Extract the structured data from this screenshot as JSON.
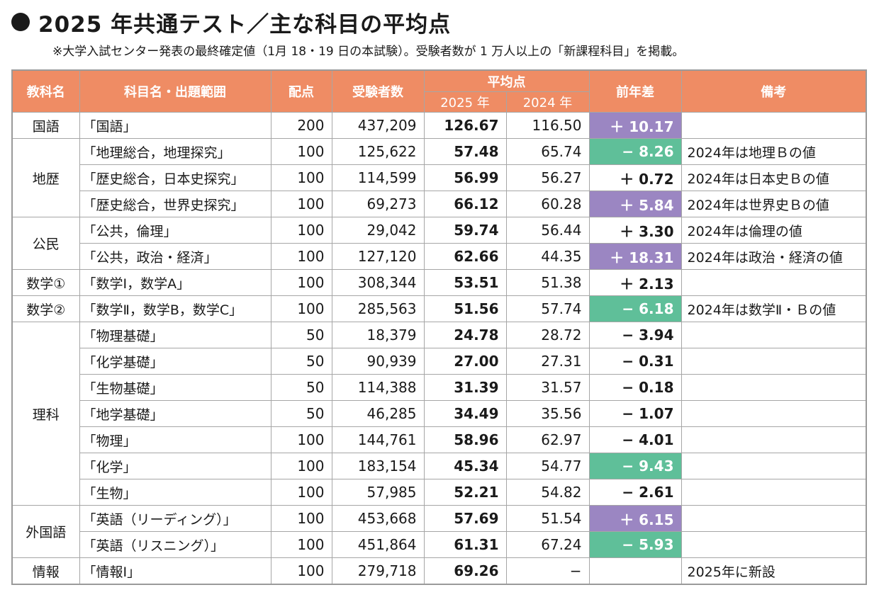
{
  "title": "2025 年共通テスト／主な科目の平均点",
  "note": "※大学入試センター発表の最終確定値（1月 18・19 日の本試験）。受験者数が 1 万人以上の「新課程科目」を掲載。",
  "colors": {
    "header": "#ef8c64",
    "increase": "#9b86c2",
    "decrease": "#5fbf99"
  },
  "headers": {
    "category": "教科名",
    "subject": "科目名・出題範囲",
    "points": "配点",
    "examinees": "受験者数",
    "average": "平均点",
    "y2025": "2025 年",
    "y2024": "2024 年",
    "diff": "前年差",
    "remarks": "備考"
  },
  "rows": [
    {
      "category": "国語",
      "subject": "「国語」",
      "points": "200",
      "examinees": "437,209",
      "avg2025": "126.67",
      "avg2024": "116.50",
      "diff": "＋ 10.17",
      "highlight": "purple",
      "remark": ""
    },
    {
      "category": "地歴",
      "subject": "「地理総合，地理探究」",
      "points": "100",
      "examinees": "125,622",
      "avg2025": "57.48",
      "avg2024": "65.74",
      "diff": "− 8.26",
      "highlight": "green",
      "remark": "2024年は地理Ｂの値"
    },
    {
      "category": "",
      "subject": "「歴史総合，日本史探究」",
      "points": "100",
      "examinees": "114,599",
      "avg2025": "56.99",
      "avg2024": "56.27",
      "diff": "＋ 0.72",
      "highlight": "",
      "remark": "2024年は日本史Ｂの値"
    },
    {
      "category": "",
      "subject": "「歴史総合，世界史探究」",
      "points": "100",
      "examinees": "69,273",
      "avg2025": "66.12",
      "avg2024": "60.28",
      "diff": "＋ 5.84",
      "highlight": "purple",
      "remark": "2024年は世界史Ｂの値"
    },
    {
      "category": "公民",
      "subject": "「公共，倫理」",
      "points": "100",
      "examinees": "29,042",
      "avg2025": "59.74",
      "avg2024": "56.44",
      "diff": "＋ 3.30",
      "highlight": "",
      "remark": "2024年は倫理の値"
    },
    {
      "category": "",
      "subject": "「公共，政治・経済」",
      "points": "100",
      "examinees": "127,120",
      "avg2025": "62.66",
      "avg2024": "44.35",
      "diff": "＋ 18.31",
      "highlight": "purple",
      "remark": "2024年は政治・経済の値"
    },
    {
      "category": "数学①",
      "subject": "「数学Ⅰ，数学A」",
      "points": "100",
      "examinees": "308,344",
      "avg2025": "53.51",
      "avg2024": "51.38",
      "diff": "＋ 2.13",
      "highlight": "",
      "remark": ""
    },
    {
      "category": "数学②",
      "subject": "「数学Ⅱ，数学B，数学C」",
      "points": "100",
      "examinees": "285,563",
      "avg2025": "51.56",
      "avg2024": "57.74",
      "diff": "− 6.18",
      "highlight": "green",
      "remark": "2024年は数学Ⅱ・Ｂの値"
    },
    {
      "category": "理科",
      "subject": "「物理基礎」",
      "points": "50",
      "examinees": "18,379",
      "avg2025": "24.78",
      "avg2024": "28.72",
      "diff": "− 3.94",
      "highlight": "",
      "remark": ""
    },
    {
      "category": "",
      "subject": "「化学基礎」",
      "points": "50",
      "examinees": "90,939",
      "avg2025": "27.00",
      "avg2024": "27.31",
      "diff": "− 0.31",
      "highlight": "",
      "remark": ""
    },
    {
      "category": "",
      "subject": "「生物基礎」",
      "points": "50",
      "examinees": "114,388",
      "avg2025": "31.39",
      "avg2024": "31.57",
      "diff": "− 0.18",
      "highlight": "",
      "remark": ""
    },
    {
      "category": "",
      "subject": "「地学基礎」",
      "points": "50",
      "examinees": "46,285",
      "avg2025": "34.49",
      "avg2024": "35.56",
      "diff": "− 1.07",
      "highlight": "",
      "remark": ""
    },
    {
      "category": "",
      "subject": "「物理」",
      "points": "100",
      "examinees": "144,761",
      "avg2025": "58.96",
      "avg2024": "62.97",
      "diff": "− 4.01",
      "highlight": "",
      "remark": ""
    },
    {
      "category": "",
      "subject": "「化学」",
      "points": "100",
      "examinees": "183,154",
      "avg2025": "45.34",
      "avg2024": "54.77",
      "diff": "− 9.43",
      "highlight": "green",
      "remark": ""
    },
    {
      "category": "",
      "subject": "「生物」",
      "points": "100",
      "examinees": "57,985",
      "avg2025": "52.21",
      "avg2024": "54.82",
      "diff": "− 2.61",
      "highlight": "",
      "remark": ""
    },
    {
      "category": "外国語",
      "subject": "「英語（リーディング）」",
      "points": "100",
      "examinees": "453,668",
      "avg2025": "57.69",
      "avg2024": "51.54",
      "diff": "＋ 6.15",
      "highlight": "purple",
      "remark": ""
    },
    {
      "category": "",
      "subject": "「英語（リスニング）」",
      "points": "100",
      "examinees": "451,864",
      "avg2025": "61.31",
      "avg2024": "67.24",
      "diff": "− 5.93",
      "highlight": "green",
      "remark": ""
    },
    {
      "category": "情報",
      "subject": "「情報Ⅰ」",
      "points": "100",
      "examinees": "279,718",
      "avg2025": "69.26",
      "avg2024": "−",
      "diff": "",
      "highlight": "",
      "remark": "2025年に新設"
    }
  ]
}
